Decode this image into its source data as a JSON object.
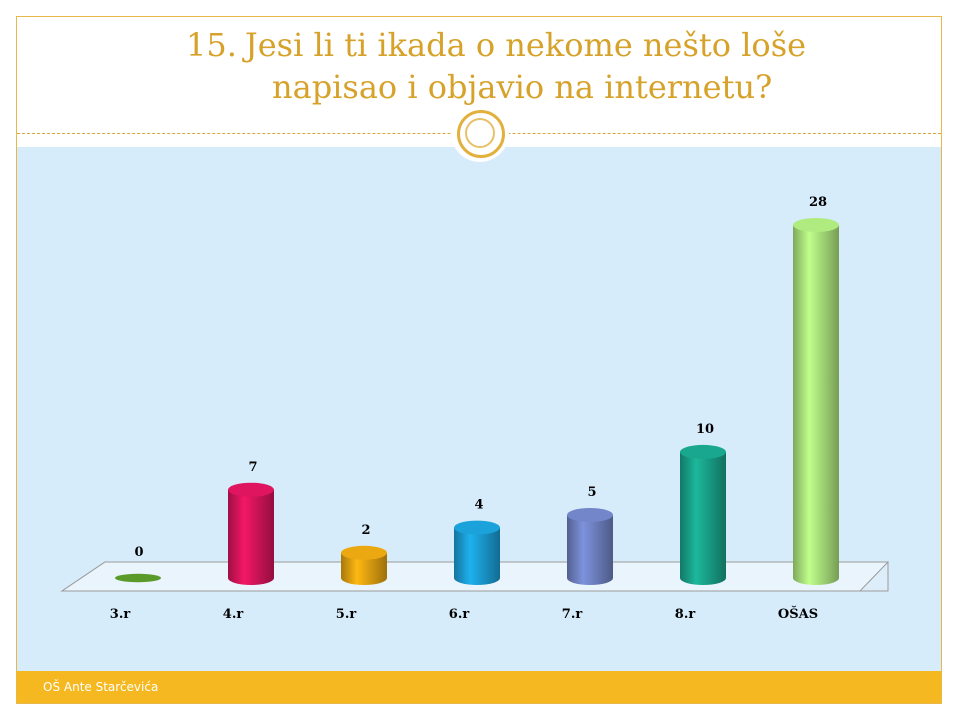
{
  "slide": {
    "title_number": "15.",
    "title_line1": "Jesi li ti ikada o nekome nešto loše",
    "title_line2": "napisao i objavio na internetu?",
    "footer": "OŠ Ante Starčevića",
    "colors": {
      "accent": "#d6a22a",
      "panel": "#d7ecfb",
      "footer": "#f6b820"
    }
  },
  "chart_data": {
    "type": "bar",
    "categories": [
      "3.r",
      "4.r",
      "5.r",
      "6.r",
      "7.r",
      "8.r",
      "OŠAS"
    ],
    "values": [
      0,
      7,
      2,
      4,
      5,
      10,
      28
    ],
    "colors": [
      "#5a9a2a",
      "#d4145a",
      "#e0a010",
      "#1a9ad0",
      "#6e80c0",
      "#18a088",
      "#a8e07a"
    ],
    "data_labels": true,
    "ylim": [
      0,
      28
    ],
    "grid": false
  }
}
